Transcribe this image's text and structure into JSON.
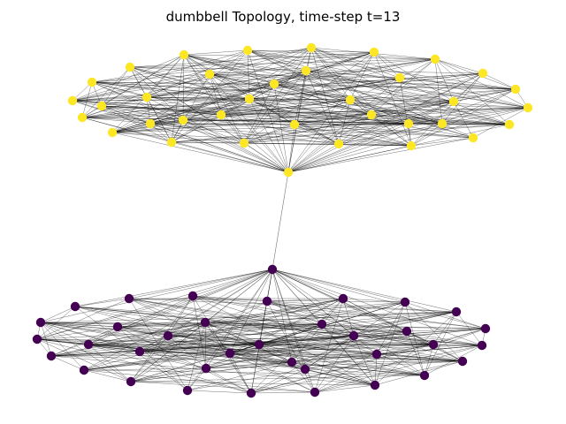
{
  "title": "dumbbell Topology, time-step t=13",
  "colors": {
    "upper_cluster_node": "#fde725",
    "lower_cluster_node": "#440154",
    "edge": "#000000",
    "background": "#ffffff"
  },
  "graph": {
    "type": "dumbbell",
    "clusters": [
      {
        "name": "upper",
        "color_key": "upper_cluster_node",
        "node_count": 36,
        "bridge_node": "U35"
      },
      {
        "name": "lower",
        "color_key": "lower_cluster_node",
        "node_count": 36,
        "bridge_node": "L0"
      }
    ],
    "bridge_edges": [
      [
        "U35",
        "L0"
      ]
    ]
  }
}
